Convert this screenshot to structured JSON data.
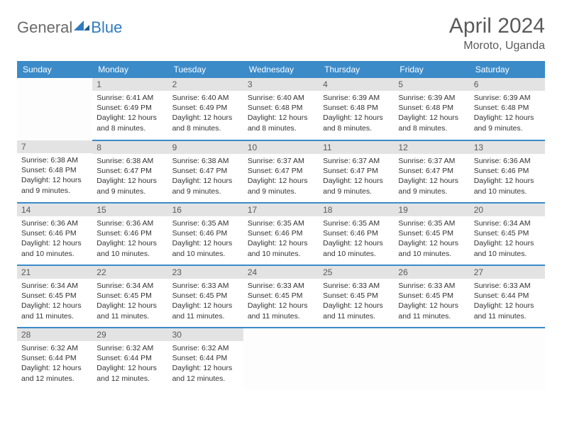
{
  "logo": {
    "general": "General",
    "blue": "Blue"
  },
  "colors": {
    "header_bg": "#3b8bc9",
    "header_text": "#ffffff",
    "daynum_bg": "#e3e3e3",
    "daynum_text": "#5a5a5a",
    "cell_border": "#3b8bc9",
    "body_text": "#333333",
    "title_text": "#5a5a5a",
    "logo_gray": "#6a6a6a",
    "logo_blue": "#2f7bbf"
  },
  "title": "April 2024",
  "location": "Moroto, Uganda",
  "dow": [
    "Sunday",
    "Monday",
    "Tuesday",
    "Wednesday",
    "Thursday",
    "Friday",
    "Saturday"
  ],
  "start_offset": 1,
  "days": [
    {
      "n": 1,
      "sunrise": "6:41 AM",
      "sunset": "6:49 PM",
      "daylight": "12 hours and 8 minutes."
    },
    {
      "n": 2,
      "sunrise": "6:40 AM",
      "sunset": "6:49 PM",
      "daylight": "12 hours and 8 minutes."
    },
    {
      "n": 3,
      "sunrise": "6:40 AM",
      "sunset": "6:48 PM",
      "daylight": "12 hours and 8 minutes."
    },
    {
      "n": 4,
      "sunrise": "6:39 AM",
      "sunset": "6:48 PM",
      "daylight": "12 hours and 8 minutes."
    },
    {
      "n": 5,
      "sunrise": "6:39 AM",
      "sunset": "6:48 PM",
      "daylight": "12 hours and 8 minutes."
    },
    {
      "n": 6,
      "sunrise": "6:39 AM",
      "sunset": "6:48 PM",
      "daylight": "12 hours and 9 minutes."
    },
    {
      "n": 7,
      "sunrise": "6:38 AM",
      "sunset": "6:48 PM",
      "daylight": "12 hours and 9 minutes."
    },
    {
      "n": 8,
      "sunrise": "6:38 AM",
      "sunset": "6:47 PM",
      "daylight": "12 hours and 9 minutes."
    },
    {
      "n": 9,
      "sunrise": "6:38 AM",
      "sunset": "6:47 PM",
      "daylight": "12 hours and 9 minutes."
    },
    {
      "n": 10,
      "sunrise": "6:37 AM",
      "sunset": "6:47 PM",
      "daylight": "12 hours and 9 minutes."
    },
    {
      "n": 11,
      "sunrise": "6:37 AM",
      "sunset": "6:47 PM",
      "daylight": "12 hours and 9 minutes."
    },
    {
      "n": 12,
      "sunrise": "6:37 AM",
      "sunset": "6:47 PM",
      "daylight": "12 hours and 9 minutes."
    },
    {
      "n": 13,
      "sunrise": "6:36 AM",
      "sunset": "6:46 PM",
      "daylight": "12 hours and 10 minutes."
    },
    {
      "n": 14,
      "sunrise": "6:36 AM",
      "sunset": "6:46 PM",
      "daylight": "12 hours and 10 minutes."
    },
    {
      "n": 15,
      "sunrise": "6:36 AM",
      "sunset": "6:46 PM",
      "daylight": "12 hours and 10 minutes."
    },
    {
      "n": 16,
      "sunrise": "6:35 AM",
      "sunset": "6:46 PM",
      "daylight": "12 hours and 10 minutes."
    },
    {
      "n": 17,
      "sunrise": "6:35 AM",
      "sunset": "6:46 PM",
      "daylight": "12 hours and 10 minutes."
    },
    {
      "n": 18,
      "sunrise": "6:35 AM",
      "sunset": "6:46 PM",
      "daylight": "12 hours and 10 minutes."
    },
    {
      "n": 19,
      "sunrise": "6:35 AM",
      "sunset": "6:45 PM",
      "daylight": "12 hours and 10 minutes."
    },
    {
      "n": 20,
      "sunrise": "6:34 AM",
      "sunset": "6:45 PM",
      "daylight": "12 hours and 10 minutes."
    },
    {
      "n": 21,
      "sunrise": "6:34 AM",
      "sunset": "6:45 PM",
      "daylight": "12 hours and 11 minutes."
    },
    {
      "n": 22,
      "sunrise": "6:34 AM",
      "sunset": "6:45 PM",
      "daylight": "12 hours and 11 minutes."
    },
    {
      "n": 23,
      "sunrise": "6:33 AM",
      "sunset": "6:45 PM",
      "daylight": "12 hours and 11 minutes."
    },
    {
      "n": 24,
      "sunrise": "6:33 AM",
      "sunset": "6:45 PM",
      "daylight": "12 hours and 11 minutes."
    },
    {
      "n": 25,
      "sunrise": "6:33 AM",
      "sunset": "6:45 PM",
      "daylight": "12 hours and 11 minutes."
    },
    {
      "n": 26,
      "sunrise": "6:33 AM",
      "sunset": "6:45 PM",
      "daylight": "12 hours and 11 minutes."
    },
    {
      "n": 27,
      "sunrise": "6:33 AM",
      "sunset": "6:44 PM",
      "daylight": "12 hours and 11 minutes."
    },
    {
      "n": 28,
      "sunrise": "6:32 AM",
      "sunset": "6:44 PM",
      "daylight": "12 hours and 12 minutes."
    },
    {
      "n": 29,
      "sunrise": "6:32 AM",
      "sunset": "6:44 PM",
      "daylight": "12 hours and 12 minutes."
    },
    {
      "n": 30,
      "sunrise": "6:32 AM",
      "sunset": "6:44 PM",
      "daylight": "12 hours and 12 minutes."
    }
  ],
  "labels": {
    "sunrise": "Sunrise:",
    "sunset": "Sunset:",
    "daylight": "Daylight:"
  }
}
